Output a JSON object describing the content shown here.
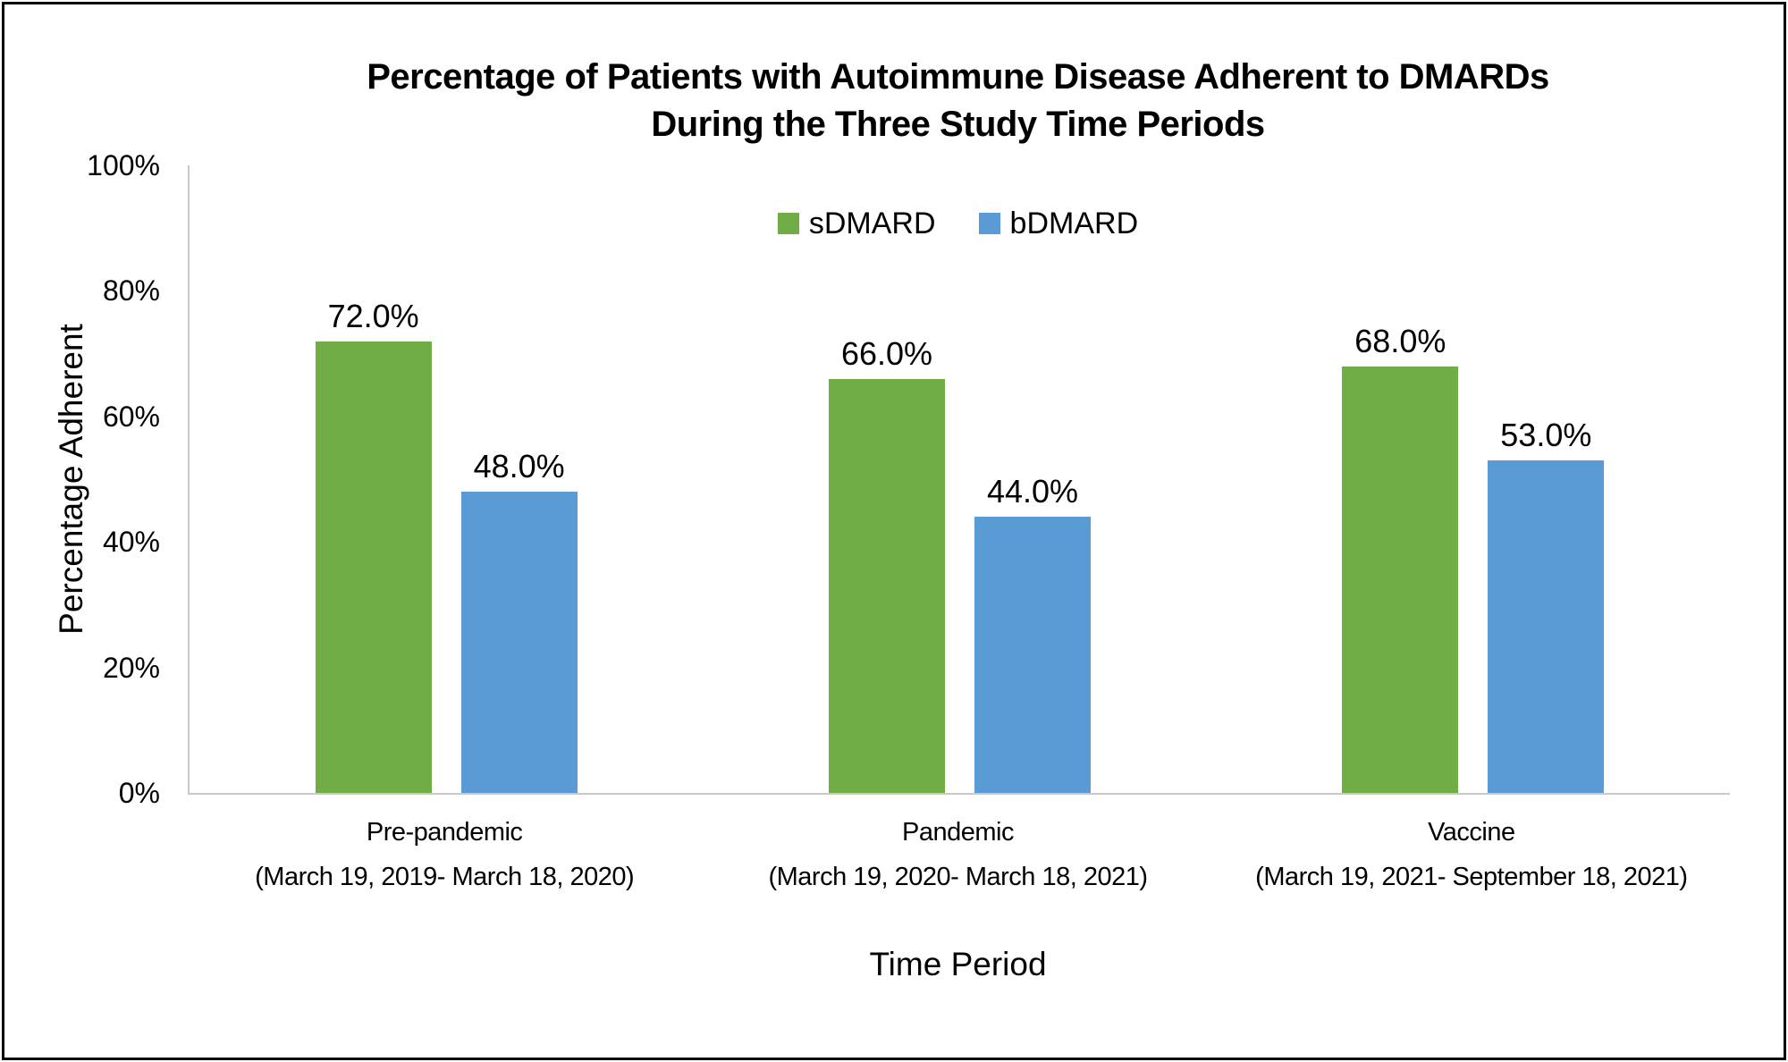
{
  "window": {
    "background_color": "#FFFFFF",
    "border_color": "#000000"
  },
  "chart_data": {
    "type": "bar",
    "title_line1": "Percentage of Patients with Autoimmune Disease Adherent to DMARDs",
    "title_line2": "During the Three Study Time Periods",
    "xlabel": "Time Period",
    "ylabel": "Percentage Adherent",
    "ylim": [
      0,
      100
    ],
    "grid": false,
    "legend_position": "top-center",
    "axis_line_color": "#C9C9C9",
    "yticks": [
      {
        "value": 0,
        "label": "0%"
      },
      {
        "value": 20,
        "label": "20%"
      },
      {
        "value": 40,
        "label": "40%"
      },
      {
        "value": 60,
        "label": "60%"
      },
      {
        "value": 80,
        "label": "80%"
      },
      {
        "value": 100,
        "label": "100%"
      }
    ],
    "categories": [
      {
        "label": "Pre-pandemic",
        "dates": "(March 19, 2019- March 18, 2020)"
      },
      {
        "label": "Pandemic",
        "dates": "(March 19, 2020- March 18, 2021)"
      },
      {
        "label": "Vaccine",
        "dates": "(March 19, 2021- September 18, 2021)"
      }
    ],
    "series": [
      {
        "name": "sDMARD",
        "color": "#70AD47",
        "values": [
          72.0,
          66.0,
          68.0
        ],
        "value_labels": [
          "72.0%",
          "66.0%",
          "68.0%"
        ]
      },
      {
        "name": "bDMARD",
        "color": "#5B9BD5",
        "values": [
          48.0,
          44.0,
          53.0
        ],
        "value_labels": [
          "48.0%",
          "44.0%",
          "53.0%"
        ]
      }
    ]
  }
}
